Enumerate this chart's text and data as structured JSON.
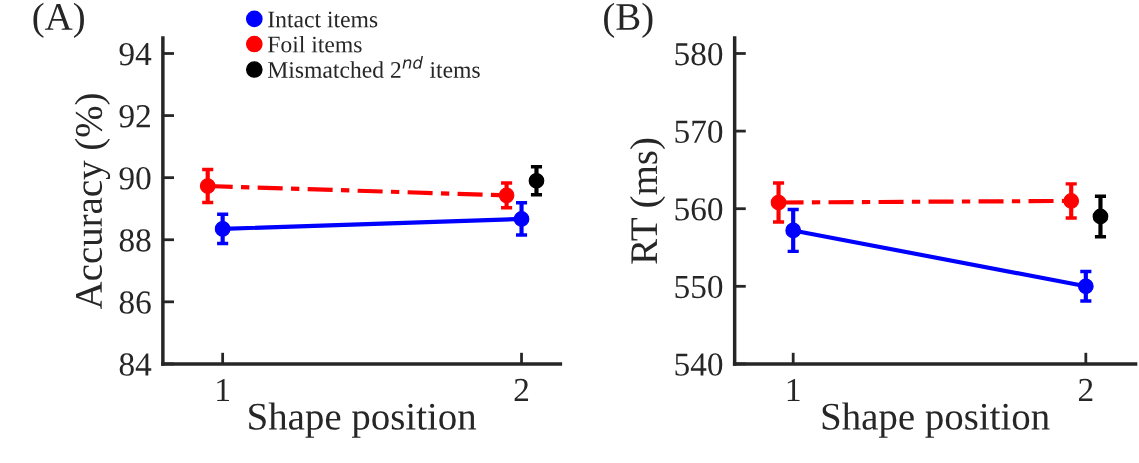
{
  "chart_data": [
    {
      "type": "line",
      "title": "(A)",
      "xlabel": "Shape position",
      "ylabel": "Accuracy (%)",
      "xlim": [
        0.8,
        2.13
      ],
      "xticks": [
        1,
        2
      ],
      "ylim": [
        84,
        94.5
      ],
      "yticks": [
        84,
        86,
        88,
        90,
        92,
        94
      ],
      "grid": false,
      "legend": "top",
      "marker": "circle",
      "series": [
        {
          "name": "Intact items",
          "color": "#0000ff",
          "x": [
            1,
            2
          ],
          "values": [
            88.35,
            88.67
          ],
          "errors": [
            0.47,
            0.52
          ],
          "line_style": "solid"
        },
        {
          "name": "Foil items",
          "color": "#ff0000",
          "x": [
            0.95,
            1.95
          ],
          "values": [
            89.73,
            89.43
          ],
          "errors": [
            0.53,
            0.4
          ],
          "line_style": "dashed"
        },
        {
          "name": "Mismatched 2$^{nd}$ items",
          "color": "#000000",
          "x": [
            2.05
          ],
          "values": [
            89.9
          ],
          "errors": [
            0.45
          ],
          "type": "scatter"
        }
      ]
    },
    {
      "type": "line",
      "title": "(B)",
      "xlabel": "Shape position",
      "ylabel": "RT (ms)",
      "xlim": [
        0.8,
        2.17
      ],
      "xticks": [
        1,
        2
      ],
      "ylim": [
        540,
        582
      ],
      "yticks": [
        540,
        550,
        560,
        570,
        580
      ],
      "grid": false,
      "marker": "circle",
      "series": [
        {
          "color": "#0000ff",
          "x": [
            1,
            2
          ],
          "values": [
            557.2,
            550.0
          ],
          "errors": [
            2.7,
            1.9
          ],
          "line_style": "solid"
        },
        {
          "color": "#ff0000",
          "x": [
            0.95,
            1.95
          ],
          "values": [
            560.8,
            561.0
          ],
          "errors": [
            2.5,
            2.2
          ],
          "line_style": "dashed"
        },
        {
          "color": "#000000",
          "x": [
            2.05
          ],
          "values": [
            559.0
          ],
          "errors": [
            2.6
          ],
          "type": "scatter"
        }
      ]
    }
  ]
}
